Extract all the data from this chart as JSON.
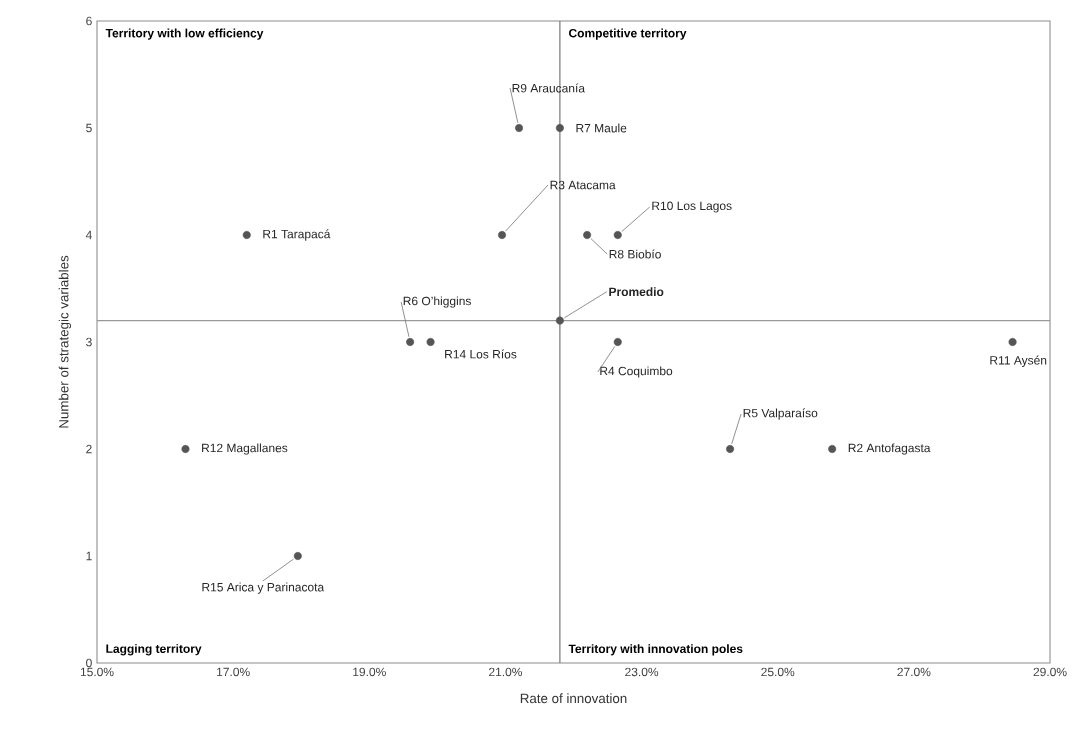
{
  "chart_data": {
    "type": "scatter",
    "xlabel": "Rate of innovation",
    "ylabel": "Number of strategic variables",
    "x": [
      17.2,
      21.2,
      21.8,
      20.95,
      22.2,
      22.65,
      21.8,
      19.6,
      19.9,
      22.65,
      28.45,
      24.3,
      25.8,
      16.3,
      17.95
    ],
    "values": [
      4,
      5,
      5,
      4,
      4,
      4,
      3.2,
      3,
      3,
      3,
      3,
      2,
      2,
      2,
      1
    ],
    "color": "#555555",
    "marker": "circle",
    "grid": false,
    "xlim": [
      15,
      29
    ],
    "ylim": [
      0,
      6
    ],
    "xticks": [
      {
        "value": 15,
        "label": "15.0%"
      },
      {
        "value": 17,
        "label": "17.0%"
      },
      {
        "value": 19,
        "label": "19.0%"
      },
      {
        "value": 21,
        "label": "21.0%"
      },
      {
        "value": 23,
        "label": "23.0%"
      },
      {
        "value": 25,
        "label": "25.0%"
      },
      {
        "value": 27,
        "label": "27.0%"
      },
      {
        "value": 29,
        "label": "29.0%"
      }
    ],
    "yticks": [
      0,
      1,
      2,
      3,
      4,
      5,
      6
    ],
    "ref_lines": [
      {
        "axis": "x",
        "value": 21.8,
        "color": "#777777"
      },
      {
        "axis": "y",
        "value": 3.2,
        "color": "#999999"
      }
    ],
    "annotations": [
      "Territory with low efficiency",
      "Competitive territory",
      "Lagging territory",
      "Territory with innovation poles",
      {
        "text": "R1 Tarapacá",
        "x": 17.2,
        "y": 4
      },
      {
        "text": "R9 Araucanía",
        "x": 21.2,
        "y": 5
      },
      {
        "text": "R7 Maule",
        "x": 21.8,
        "y": 5
      },
      {
        "text": "R3 Atacama",
        "x": 20.95,
        "y": 4
      },
      {
        "text": "R8 Biobío",
        "x": 22.2,
        "y": 4
      },
      {
        "text": "R10 Los Lagos",
        "x": 22.65,
        "y": 4
      },
      {
        "text": "Promedio",
        "x": 21.8,
        "y": 3.2
      },
      {
        "text": "R6 O’higgins",
        "x": 19.6,
        "y": 3
      },
      {
        "text": "R14 Los Ríos",
        "x": 19.9,
        "y": 3
      },
      {
        "text": "R4 Coquimbo",
        "x": 22.65,
        "y": 3
      },
      {
        "text": "R11 Aysén",
        "x": 28.45,
        "y": 3
      },
      {
        "text": "R5 Valparaíso",
        "x": 24.3,
        "y": 2
      },
      {
        "text": "R2 Antofagasta",
        "x": 25.8,
        "y": 2
      },
      {
        "text": "R12 Magallanes",
        "x": 16.3,
        "y": 2
      },
      {
        "text": "R15 Arica y Parinacota",
        "x": 17.95,
        "y": 1
      }
    ]
  }
}
